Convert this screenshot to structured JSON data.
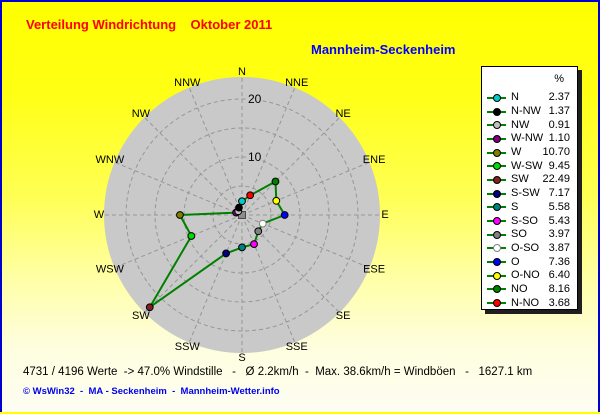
{
  "header": {
    "title": "Verteilung Windrichtung    Oktober 2011",
    "station": "Mannheim-Seckenheim"
  },
  "legend": {
    "header": "%"
  },
  "colors": {
    "title": "#ff0000",
    "station": "#0000ff",
    "polygon_line": "#008000",
    "disc_fill": "#c9c9c9",
    "grid": "#969696",
    "window_border": "#0000cc"
  },
  "chart_data": {
    "type": "radar",
    "title": "Verteilung Windrichtung Oktober 2011",
    "station": "Mannheim-Seckenheim",
    "unit": "%",
    "tick_values": [
      10,
      20
    ],
    "tick_labels": [
      "10",
      "20"
    ],
    "ring_values": [
      5,
      10,
      15,
      20
    ],
    "axis_max": 23.8,
    "points": [
      {
        "legend_label": "N",
        "dir_label": "N",
        "angle_deg": 0,
        "value": 2.37,
        "color": "#00cccc"
      },
      {
        "legend_label": "N-NW",
        "dir_label": "NNW",
        "angle_deg": 337.5,
        "value": 1.37,
        "color": "#000000"
      },
      {
        "legend_label": "NW",
        "dir_label": "NW",
        "angle_deg": 315,
        "value": 0.91,
        "color": "#c0c0c0"
      },
      {
        "legend_label": "W-NW",
        "dir_label": "WNW",
        "angle_deg": 292.5,
        "value": 1.1,
        "color": "#800080"
      },
      {
        "legend_label": "W",
        "dir_label": "W",
        "angle_deg": 270,
        "value": 10.7,
        "color": "#808000"
      },
      {
        "legend_label": "W-SW",
        "dir_label": "WSW",
        "angle_deg": 247.5,
        "value": 9.45,
        "color": "#00dd00"
      },
      {
        "legend_label": "SW",
        "dir_label": "SW",
        "angle_deg": 225,
        "value": 22.49,
        "color": "#802020"
      },
      {
        "legend_label": "S-SW",
        "dir_label": "SSW",
        "angle_deg": 202.5,
        "value": 7.17,
        "color": "#000080"
      },
      {
        "legend_label": "S",
        "dir_label": "S",
        "angle_deg": 180,
        "value": 5.58,
        "color": "#008080"
      },
      {
        "legend_label": "S-SO",
        "dir_label": "SSE",
        "angle_deg": 157.5,
        "value": 5.43,
        "color": "#ff00ff"
      },
      {
        "legend_label": "SO",
        "dir_label": "SE",
        "angle_deg": 135,
        "value": 3.97,
        "color": "#808080"
      },
      {
        "legend_label": "O-SO",
        "dir_label": "ESE",
        "angle_deg": 112.5,
        "value": 3.87,
        "color": "#ffffff"
      },
      {
        "legend_label": "O",
        "dir_label": "E",
        "angle_deg": 90,
        "value": 7.36,
        "color": "#0000ff"
      },
      {
        "legend_label": "O-NO",
        "dir_label": "ENE",
        "angle_deg": 67.5,
        "value": 6.4,
        "color": "#ffff00"
      },
      {
        "legend_label": "NO",
        "dir_label": "NE",
        "angle_deg": 45,
        "value": 8.16,
        "color": "#008000"
      },
      {
        "legend_label": "N-NO",
        "dir_label": "NNE",
        "angle_deg": 22.5,
        "value": 3.68,
        "color": "#ff0000"
      }
    ]
  },
  "footer": {
    "status": "4731 / 4196 Werte  -> 47.0% Windstille   -   Ø 2.2km/h  -  Max. 38.6km/h = Windböen   -   1627.1 km",
    "credit": "© WsWin32  -  MA - Seckenheim  -  Mannheim-Wetter.info"
  }
}
